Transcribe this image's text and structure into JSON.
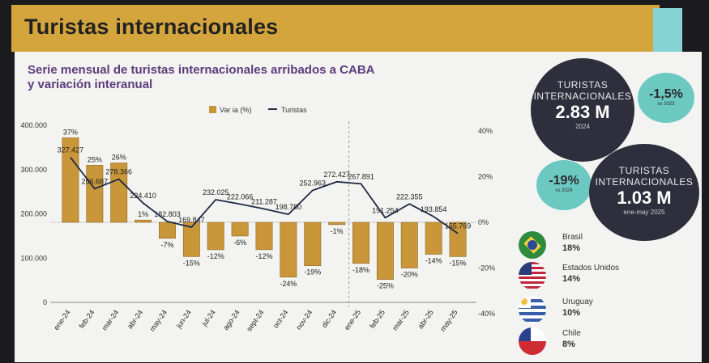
{
  "page_title": "Turistas internacionales",
  "chart_title": "Serie mensual de turistas internacionales arribados a CABA y variación interanual",
  "legend": {
    "bar": "Var ia (%)",
    "line": "Turistas"
  },
  "colors": {
    "bar": "#c9963a",
    "line": "#1f2a44",
    "accent_gold": "#d4a53c",
    "teal": "#6cc9c2",
    "dark": "#2e2e3c"
  },
  "chart_data": {
    "type": "bar+line",
    "categories": [
      "ene-24",
      "feb-24",
      "mar-24",
      "abr-24",
      "may-24",
      "jun-24",
      "jul-24",
      "ago-24",
      "sept-24",
      "oct-24",
      "nov-24",
      "dic-24",
      "ene-25",
      "feb-25",
      "mar-25",
      "abr-25",
      "may-25"
    ],
    "series": [
      {
        "name": "Var ia (%)",
        "type": "bar",
        "axis": "right",
        "values": [
          37,
          25,
          26,
          1,
          -7,
          -15,
          -12,
          -6,
          -12,
          -24,
          -19,
          -1,
          -18,
          -25,
          -20,
          -14,
          -15
        ],
        "labels": [
          "37%",
          "25%",
          "26%",
          "1%",
          "-7%",
          "-15%",
          "-12%",
          "-6%",
          "-12%",
          "-24%",
          "-19%",
          "-1%",
          "-18%",
          "-25%",
          "-20%",
          "-14%",
          "-15%"
        ]
      },
      {
        "name": "Turistas",
        "type": "line",
        "axis": "left",
        "values": [
          327427,
          256687,
          278366,
          224410,
          182803,
          169847,
          232025,
          222066,
          211287,
          198780,
          252963,
          272427,
          267891,
          191254,
          222355,
          193854,
          155769
        ],
        "labels": [
          "327.427",
          "256.687",
          "278.366",
          "224.410",
          "182.803",
          "169.847",
          "232.025",
          "222.066",
          "211.287",
          "198.780",
          "252.963",
          "272.427",
          "267.891",
          "191.254",
          "222.355",
          "193.854",
          "155.769"
        ]
      }
    ],
    "y_left": {
      "ticks": [
        "400.000",
        "300.000",
        "200.000",
        "100.000",
        "0"
      ],
      "values": [
        400000,
        300000,
        200000,
        100000,
        0
      ],
      "range": [
        0,
        400000
      ]
    },
    "y_right": {
      "ticks": [
        "40%",
        "20%",
        "0%",
        "-20%",
        "-40%"
      ],
      "values": [
        40,
        20,
        0,
        -20,
        -40
      ],
      "range": [
        -40,
        40
      ]
    }
  },
  "kpis": [
    {
      "label_line1": "TURISTAS",
      "label_line2": "INTERNACIONALES",
      "value": "2.83 M",
      "period": "2024"
    },
    {
      "label_line1": "TURISTAS",
      "label_line2": "INTERNACIONALES",
      "value": "1.03 M",
      "period": "ene-may 2025"
    }
  ],
  "variations": [
    {
      "value": "-1,5%",
      "period": "vs 2023"
    },
    {
      "value": "-19%",
      "period": "vs 2024"
    }
  ],
  "countries": [
    {
      "name": "Brasil",
      "pct": "18%"
    },
    {
      "name": "Estados Unidos",
      "pct": "14%"
    },
    {
      "name": "Uruguay",
      "pct": "10%"
    },
    {
      "name": "Chile",
      "pct": "8%"
    }
  ]
}
